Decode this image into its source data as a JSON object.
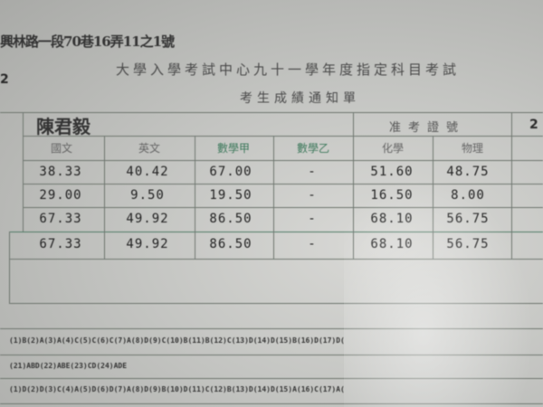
{
  "header": {
    "address": "興林路一段70巷16弄11之1號",
    "left_fragment": "2",
    "title": "大學入學考試中心九十一學年度指定科目考試",
    "subtitle": "考生成績通知單"
  },
  "table": {
    "name": "陳君毅",
    "exam_number_label": "准考證號",
    "right_fragment": "2",
    "columns": [
      "國文",
      "英文",
      "數學甲",
      "數學乙",
      "化學",
      "物理"
    ],
    "rows": [
      [
        "38.33",
        "40.42",
        "67.00",
        "-",
        "51.60",
        "48.75"
      ],
      [
        "29.00",
        "9.50",
        "19.50",
        "-",
        "16.50",
        "8.00"
      ],
      [
        "67.33",
        "49.92",
        "86.50",
        "-",
        "68.10",
        "56.75"
      ],
      [
        "67.33",
        "49.92",
        "86.50",
        "-",
        "68.10",
        "56.75"
      ]
    ]
  },
  "answers": [
    "(1)B(2)A(3)A(4)C(5)C(6)C(7)A(8)D(9)C(10)B(11)B(12)C(13)D(14)D(15)B(16)D(17)D(",
    "(21)ABD(22)ABE(23)CD(24)ADE",
    "(1)D(2)D(3)C(4)A(5)D(6)D(7)A(8)D(9)B(10)D(11)C(12)B(13)D(14)D(15)A(16)C(17)A("
  ],
  "colors": {
    "paper": "#c4c5c2",
    "rule_lines": "#6f7770",
    "green_header": "#3f7a5d"
  }
}
